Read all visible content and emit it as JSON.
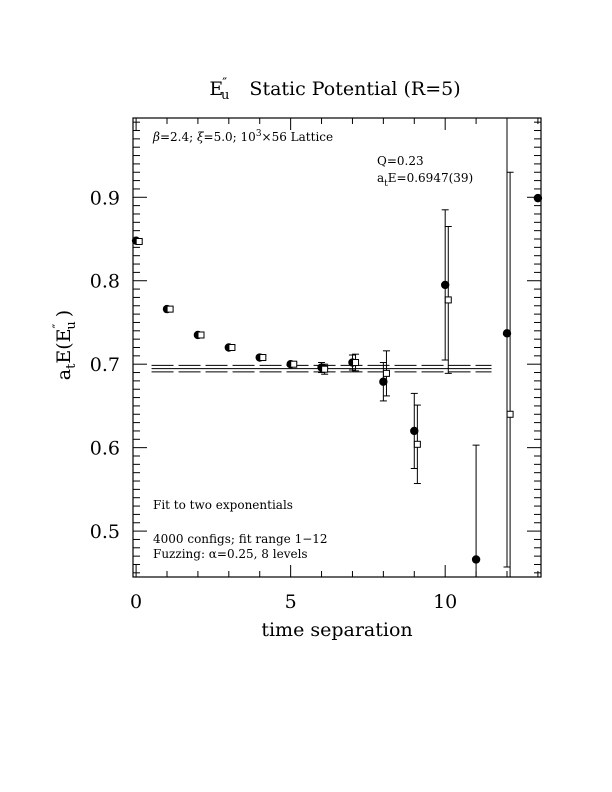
{
  "chart_data": {
    "type": "scatter",
    "title": "E″u  Static Potential (R=5)",
    "ylabel": "atE(E″u )",
    "xlabel": "time separation",
    "xlim": [
      -0.1,
      13.1
    ],
    "ylim": [
      0.445,
      0.995
    ],
    "x_ticks": [
      0,
      5,
      10
    ],
    "x_tick_labels": [
      "0",
      "5",
      "10"
    ],
    "y_ticks": [
      0.5,
      0.6,
      0.7,
      0.8,
      0.9
    ],
    "y_tick_labels": [
      "0.5",
      "0.6",
      "0.7",
      "0.8",
      "0.9"
    ],
    "annotations": {
      "lattice": "β=2.4; ξ=5.0; 10³×56 Lattice",
      "q": "Q=0.23",
      "energy": "atE=0.6947(39)",
      "fit_type": "Fit to two exponentials",
      "configs": "4000 configs; fit range 1−12",
      "fuzzing": "Fuzzing: α=0.25, 8 levels"
    },
    "series": [
      {
        "marker": "filled-circle",
        "points": [
          {
            "x": 0,
            "y": 0.848,
            "err": 0.002
          },
          {
            "x": 1,
            "y": 0.766,
            "err": 0.002
          },
          {
            "x": 2,
            "y": 0.735,
            "err": 0.002
          },
          {
            "x": 3,
            "y": 0.72,
            "err": 0.002
          },
          {
            "x": 4,
            "y": 0.708,
            "err": 0.002
          },
          {
            "x": 5,
            "y": 0.7,
            "err": 0.002
          },
          {
            "x": 6,
            "y": 0.696,
            "err": 0.006
          },
          {
            "x": 7,
            "y": 0.702,
            "err": 0.009
          },
          {
            "x": 8,
            "y": 0.679,
            "err": 0.023
          },
          {
            "x": 9,
            "y": 0.62,
            "err": 0.045
          },
          {
            "x": 10,
            "y": 0.795,
            "err": 0.09
          },
          {
            "x": 11,
            "y": 0.466,
            "err": 0.137
          },
          {
            "x": 12,
            "y": 0.737,
            "err": 0.28
          },
          {
            "x": 13,
            "y": 0.899,
            "err": 0.0
          }
        ]
      },
      {
        "marker": "open-square",
        "points": [
          {
            "x": 0.1,
            "y": 0.847,
            "err": 0.002
          },
          {
            "x": 1.1,
            "y": 0.766,
            "err": 0.002
          },
          {
            "x": 2.1,
            "y": 0.735,
            "err": 0.002
          },
          {
            "x": 3.1,
            "y": 0.72,
            "err": 0.002
          },
          {
            "x": 4.1,
            "y": 0.708,
            "err": 0.002
          },
          {
            "x": 5.1,
            "y": 0.7,
            "err": 0.002
          },
          {
            "x": 6.1,
            "y": 0.694,
            "err": 0.006
          },
          {
            "x": 7.1,
            "y": 0.702,
            "err": 0.01
          },
          {
            "x": 8.1,
            "y": 0.689,
            "err": 0.027
          },
          {
            "x": 9.1,
            "y": 0.604,
            "err": 0.047
          },
          {
            "x": 10.1,
            "y": 0.777,
            "err": 0.088
          },
          {
            "x": 12.1,
            "y": 0.64,
            "err": 0.29
          }
        ]
      }
    ],
    "fit": {
      "x_range": [
        0.5,
        11.5
      ],
      "value": 0.6947,
      "error": 0.0039
    }
  }
}
